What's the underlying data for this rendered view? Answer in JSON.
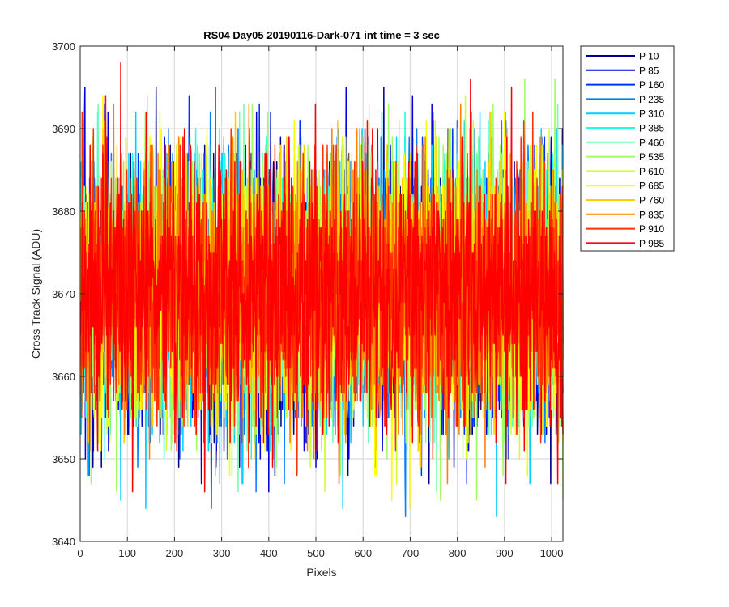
{
  "chart_data": {
    "type": "line",
    "title": "RS04 Day05 20190116-Dark-071 int time = 3 sec",
    "xlabel": "Pixels",
    "ylabel": "Cross Track Signal (ADU)",
    "xlim": [
      0,
      1024
    ],
    "ylim": [
      3640,
      3700
    ],
    "x_ticks": [
      0,
      100,
      200,
      300,
      400,
      500,
      600,
      700,
      800,
      900,
      1000
    ],
    "y_ticks": [
      3640,
      3650,
      3660,
      3670,
      3680,
      3690,
      3700
    ],
    "x_tick_labels": [
      "0",
      "100",
      "200",
      "300",
      "400",
      "500",
      "600",
      "700",
      "800",
      "900",
      "1000"
    ],
    "y_tick_labels": [
      "3640",
      "3650",
      "3660",
      "3670",
      "3680",
      "3690",
      "3700"
    ],
    "grid": true,
    "legend_position": "outside-top-right",
    "num_pixels": 1024,
    "series": [
      {
        "name": "P 10",
        "color": "#00008f",
        "mean": 3670,
        "min": 3643,
        "max": 3695
      },
      {
        "name": "P 85",
        "color": "#0000df",
        "mean": 3670,
        "min": 3644,
        "max": 3695
      },
      {
        "name": "P 160",
        "color": "#0030ff",
        "mean": 3670,
        "min": 3644,
        "max": 3694
      },
      {
        "name": "P 235",
        "color": "#0080ff",
        "mean": 3670,
        "min": 3643,
        "max": 3693
      },
      {
        "name": "P 310",
        "color": "#00cfff",
        "mean": 3670,
        "min": 3641,
        "max": 3692
      },
      {
        "name": "P 385",
        "color": "#20ffdf",
        "mean": 3670,
        "min": 3646,
        "max": 3692
      },
      {
        "name": "P 460",
        "color": "#70ffaf",
        "mean": 3670,
        "min": 3646,
        "max": 3693
      },
      {
        "name": "P 535",
        "color": "#9fff60",
        "mean": 3670,
        "min": 3645,
        "max": 3696
      },
      {
        "name": "P 610",
        "color": "#cfff30",
        "mean": 3670,
        "min": 3646,
        "max": 3694
      },
      {
        "name": "P 685",
        "color": "#ffff00",
        "mean": 3670,
        "min": 3644,
        "max": 3694
      },
      {
        "name": "P 760",
        "color": "#ffcf00",
        "mean": 3670,
        "min": 3648,
        "max": 3696
      },
      {
        "name": "P 835",
        "color": "#ff8000",
        "mean": 3670,
        "min": 3645,
        "max": 3693
      },
      {
        "name": "P 910",
        "color": "#ff3000",
        "mean": 3670,
        "min": 3642,
        "max": 3692
      },
      {
        "name": "P 985",
        "color": "#ff0000",
        "mean": 3670,
        "min": 3646,
        "max": 3698
      }
    ]
  }
}
